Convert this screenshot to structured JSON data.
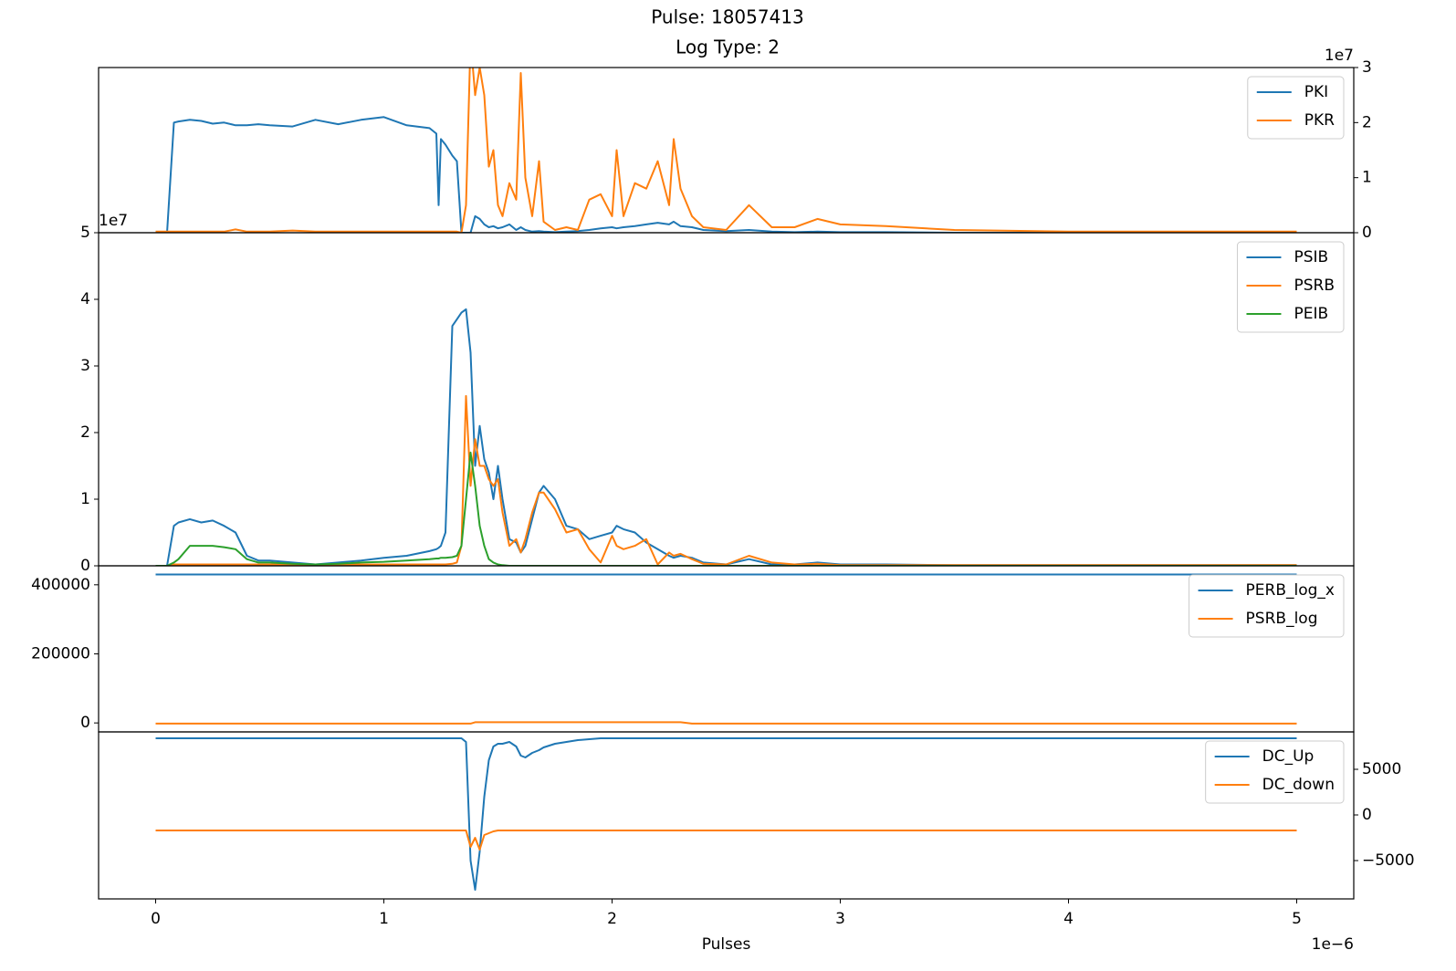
{
  "title": [
    "Pulse: 18057413",
    "Log Type: 2"
  ],
  "chart_data": [
    {
      "type": "line",
      "yaxis": "right",
      "legend": "upper right",
      "offset_label": "1e7",
      "x": [
        0,
        0.05,
        0.08,
        0.1,
        0.15,
        0.2,
        0.25,
        0.3,
        0.35,
        0.4,
        0.45,
        0.5,
        0.6,
        0.7,
        0.8,
        0.9,
        1.0,
        1.1,
        1.2,
        1.23,
        1.24,
        1.25,
        1.27,
        1.3,
        1.32,
        1.34,
        1.36,
        1.38,
        1.4,
        1.42,
        1.44,
        1.46,
        1.48,
        1.5,
        1.52,
        1.55,
        1.58,
        1.6,
        1.62,
        1.65,
        1.68,
        1.7,
        1.75,
        1.8,
        1.85,
        1.9,
        1.95,
        2.0,
        2.02,
        2.05,
        2.1,
        2.15,
        2.2,
        2.25,
        2.27,
        2.3,
        2.35,
        2.4,
        2.5,
        2.6,
        2.7,
        2.8,
        2.9,
        3.0,
        3.2,
        3.5,
        4.0,
        4.5,
        5.0
      ],
      "xlim": [
        -0.25,
        5.25
      ],
      "ylim": [
        0,
        3
      ],
      "yticks": [
        0,
        1,
        2,
        3
      ],
      "series": [
        {
          "name": "PKI",
          "color": "#1f77b4",
          "values": [
            0,
            0,
            2.0,
            2.02,
            2.05,
            2.03,
            1.98,
            2.0,
            1.95,
            1.95,
            1.97,
            1.95,
            1.93,
            2.05,
            1.97,
            2.05,
            2.1,
            1.95,
            1.9,
            1.8,
            0.5,
            1.7,
            1.6,
            1.4,
            1.3,
            0,
            0,
            0,
            0.3,
            0.25,
            0.15,
            0.1,
            0.12,
            0.08,
            0.1,
            0.15,
            0.05,
            0.1,
            0.05,
            0.02,
            0.03,
            0.02,
            0.01,
            0.02,
            0.03,
            0.05,
            0.08,
            0.1,
            0.08,
            0.1,
            0.12,
            0.15,
            0.18,
            0.15,
            0.2,
            0.12,
            0.1,
            0.05,
            0.03,
            0.05,
            0.02,
            0.01,
            0.02,
            0.01,
            0.01,
            0,
            0,
            0,
            0
          ]
        },
        {
          "name": "PKR",
          "color": "#ff7f0e",
          "values": [
            0.02,
            0.02,
            0.02,
            0.02,
            0.02,
            0.02,
            0.02,
            0.02,
            0.06,
            0.02,
            0.02,
            0.02,
            0.04,
            0.02,
            0.02,
            0.02,
            0.02,
            0.02,
            0.02,
            0.02,
            0.02,
            0.02,
            0.02,
            0.02,
            0.02,
            0,
            0.5,
            3.5,
            2.5,
            3.0,
            2.5,
            1.2,
            1.5,
            0.5,
            0.3,
            0.9,
            0.6,
            2.9,
            1.0,
            0.3,
            1.3,
            0.2,
            0.05,
            0.1,
            0.05,
            0.6,
            0.7,
            0.3,
            1.5,
            0.3,
            0.9,
            0.8,
            1.3,
            0.5,
            1.7,
            0.8,
            0.3,
            0.1,
            0.05,
            0.5,
            0.1,
            0.1,
            0.25,
            0.15,
            0.12,
            0.05,
            0.02,
            0.02,
            0.02
          ]
        }
      ]
    },
    {
      "type": "line",
      "yaxis": "left",
      "legend": "upper right",
      "offset_label": "1e7",
      "x": [
        0,
        0.05,
        0.08,
        0.1,
        0.15,
        0.2,
        0.25,
        0.3,
        0.35,
        0.4,
        0.45,
        0.5,
        0.6,
        0.7,
        0.8,
        0.9,
        1.0,
        1.1,
        1.2,
        1.23,
        1.24,
        1.25,
        1.27,
        1.3,
        1.32,
        1.34,
        1.36,
        1.38,
        1.4,
        1.42,
        1.44,
        1.46,
        1.48,
        1.5,
        1.52,
        1.55,
        1.58,
        1.6,
        1.62,
        1.65,
        1.68,
        1.7,
        1.75,
        1.8,
        1.85,
        1.9,
        1.95,
        2.0,
        2.02,
        2.05,
        2.1,
        2.15,
        2.2,
        2.25,
        2.27,
        2.3,
        2.35,
        2.4,
        2.5,
        2.6,
        2.7,
        2.8,
        2.9,
        3.0,
        3.2,
        3.5,
        4.0,
        4.5,
        5.0
      ],
      "xlim": [
        -0.25,
        5.25
      ],
      "ylim": [
        0,
        5
      ],
      "yticks": [
        0,
        1,
        2,
        3,
        4,
        5
      ],
      "series": [
        {
          "name": "PSIB",
          "color": "#1f77b4",
          "values": [
            0,
            0,
            0.6,
            0.65,
            0.7,
            0.65,
            0.68,
            0.6,
            0.5,
            0.15,
            0.08,
            0.08,
            0.05,
            0.02,
            0.05,
            0.08,
            0.12,
            0.15,
            0.22,
            0.25,
            0.27,
            0.3,
            0.5,
            3.6,
            3.7,
            3.8,
            3.85,
            3.2,
            1.5,
            2.1,
            1.6,
            1.4,
            1.0,
            1.5,
            1.0,
            0.4,
            0.35,
            0.2,
            0.3,
            0.7,
            1.1,
            1.2,
            1.0,
            0.6,
            0.55,
            0.4,
            0.45,
            0.5,
            0.6,
            0.55,
            0.5,
            0.35,
            0.25,
            0.15,
            0.12,
            0.15,
            0.12,
            0.05,
            0.02,
            0.1,
            0.02,
            0.02,
            0.05,
            0.02,
            0.02,
            0.01,
            0.01,
            0.01,
            0.01
          ]
        },
        {
          "name": "PSRB",
          "color": "#ff7f0e",
          "values": [
            0,
            0,
            0.02,
            0.02,
            0.02,
            0.02,
            0.02,
            0.02,
            0.02,
            0.02,
            0.02,
            0.02,
            0.02,
            0.02,
            0.02,
            0.02,
            0.02,
            0.02,
            0.02,
            0.02,
            0.02,
            0.02,
            0.02,
            0.03,
            0.05,
            0.3,
            2.55,
            1.2,
            1.9,
            1.5,
            1.5,
            1.3,
            1.2,
            1.3,
            0.8,
            0.3,
            0.4,
            0.2,
            0.4,
            0.8,
            1.1,
            1.1,
            0.85,
            0.5,
            0.55,
            0.25,
            0.05,
            0.45,
            0.3,
            0.25,
            0.3,
            0.4,
            0.02,
            0.2,
            0.15,
            0.18,
            0.1,
            0.03,
            0.02,
            0.15,
            0.05,
            0.02,
            0.03,
            0.01,
            0.01,
            0.01,
            0.01,
            0.01,
            0.01
          ]
        },
        {
          "name": "PEIB",
          "color": "#2ca02c",
          "values": [
            0,
            0,
            0.05,
            0.1,
            0.3,
            0.3,
            0.3,
            0.28,
            0.25,
            0.1,
            0.05,
            0.05,
            0.03,
            0.02,
            0.03,
            0.05,
            0.06,
            0.08,
            0.1,
            0.11,
            0.11,
            0.12,
            0.12,
            0.13,
            0.15,
            0.3,
            1.0,
            1.7,
            1.2,
            0.6,
            0.3,
            0.1,
            0.05,
            0.02,
            0.01,
            0,
            0,
            0,
            0,
            0,
            0,
            0,
            0,
            0,
            0,
            0,
            0,
            0,
            0,
            0,
            0,
            0,
            0,
            0,
            0,
            0,
            0,
            0,
            0,
            0,
            0,
            0,
            0,
            0,
            0,
            0,
            0,
            0,
            0
          ]
        }
      ]
    },
    {
      "type": "line",
      "yaxis": "left",
      "legend": "upper right",
      "x": [
        0,
        0.05,
        0.08,
        0.1,
        0.15,
        0.2,
        0.25,
        0.3,
        0.35,
        0.4,
        0.45,
        0.5,
        0.6,
        0.7,
        0.8,
        0.9,
        1.0,
        1.1,
        1.2,
        1.23,
        1.24,
        1.25,
        1.27,
        1.3,
        1.32,
        1.34,
        1.36,
        1.38,
        1.4,
        1.42,
        1.44,
        1.46,
        1.48,
        1.5,
        1.52,
        1.55,
        1.58,
        1.6,
        1.62,
        1.65,
        1.68,
        1.7,
        1.75,
        1.8,
        1.85,
        1.9,
        1.95,
        2.0,
        2.02,
        2.05,
        2.1,
        2.15,
        2.2,
        2.25,
        2.27,
        2.3,
        2.35,
        2.4,
        2.5,
        2.6,
        2.7,
        2.8,
        2.9,
        3.0,
        3.2,
        3.5,
        4.0,
        4.5,
        5.0
      ],
      "xlim": [
        -0.25,
        5.25
      ],
      "ylim": [
        -26000,
        455000
      ],
      "yticks": [
        0,
        200000,
        400000
      ],
      "series": [
        {
          "name": "PERB_log_x",
          "color": "#1f77b4",
          "values": [
            430000,
            430000,
            430000,
            430000,
            430000,
            430000,
            430000,
            430000,
            430000,
            430000,
            430000,
            430000,
            430000,
            430000,
            430000,
            430000,
            430000,
            430000,
            430000,
            430000,
            430000,
            430000,
            430000,
            430000,
            430000,
            430000,
            430000,
            430000,
            430000,
            430000,
            430000,
            430000,
            430000,
            430000,
            430000,
            430000,
            430000,
            430000,
            430000,
            430000,
            430000,
            430000,
            430000,
            430000,
            430000,
            430000,
            430000,
            430000,
            430000,
            430000,
            430000,
            430000,
            430000,
            430000,
            430000,
            430000,
            430000,
            430000,
            430000,
            430000,
            430000,
            430000,
            430000,
            430000,
            430000,
            430000,
            430000,
            430000,
            430000
          ]
        },
        {
          "name": "PSRB_log",
          "color": "#ff7f0e",
          "values": [
            -2000,
            -2000,
            -2000,
            -2000,
            -2000,
            -2000,
            -2000,
            -2000,
            -2000,
            -2000,
            -2000,
            -2000,
            -2000,
            -2000,
            -2000,
            -2000,
            -2000,
            -2000,
            -2000,
            -2000,
            -2000,
            -2000,
            -2000,
            -2000,
            -2000,
            -2000,
            -2000,
            -2000,
            2000,
            2000,
            2000,
            2000,
            2000,
            2000,
            2000,
            2000,
            2000,
            2000,
            2000,
            2000,
            2000,
            2000,
            2000,
            2000,
            2000,
            2000,
            2000,
            2000,
            2000,
            2000,
            2000,
            2000,
            2000,
            2000,
            2000,
            2000,
            -2000,
            -2000,
            -2000,
            -2000,
            -2000,
            -2000,
            -2000,
            -2000,
            -2000,
            -2000,
            -2000,
            -2000,
            -2000
          ]
        }
      ]
    },
    {
      "type": "line",
      "yaxis": "right",
      "legend": "upper right",
      "xlabel": "Pulses",
      "x_offset_label": "1e−6",
      "x": [
        0,
        0.05,
        0.08,
        0.1,
        0.15,
        0.2,
        0.25,
        0.3,
        0.35,
        0.4,
        0.45,
        0.5,
        0.6,
        0.7,
        0.8,
        0.9,
        1.0,
        1.1,
        1.2,
        1.23,
        1.24,
        1.25,
        1.27,
        1.3,
        1.32,
        1.34,
        1.36,
        1.38,
        1.4,
        1.42,
        1.44,
        1.46,
        1.48,
        1.5,
        1.52,
        1.55,
        1.58,
        1.6,
        1.62,
        1.65,
        1.68,
        1.7,
        1.75,
        1.8,
        1.85,
        1.9,
        1.95,
        2.0,
        2.02,
        2.05,
        2.1,
        2.15,
        2.2,
        2.25,
        2.27,
        2.3,
        2.35,
        2.4,
        2.5,
        2.6,
        2.7,
        2.8,
        2.9,
        3.0,
        3.2,
        3.5,
        4.0,
        4.5,
        5.0
      ],
      "xlim": [
        -0.25,
        5.25
      ],
      "xticks": [
        0,
        1,
        2,
        3,
        4,
        5
      ],
      "ylim": [
        -9200,
        9100
      ],
      "yticks": [
        {
          "value": -5000,
          "label": "−5000"
        },
        0,
        5000
      ],
      "series": [
        {
          "name": "DC_Up",
          "color": "#1f77b4",
          "values": [
            8400,
            8400,
            8400,
            8400,
            8400,
            8400,
            8400,
            8400,
            8400,
            8400,
            8400,
            8400,
            8400,
            8400,
            8400,
            8400,
            8400,
            8400,
            8400,
            8400,
            8400,
            8400,
            8400,
            8400,
            8400,
            8400,
            8000,
            -5000,
            -8200,
            -4000,
            2000,
            6000,
            7500,
            7800,
            7800,
            8000,
            7500,
            6500,
            6300,
            6800,
            7100,
            7400,
            7800,
            8000,
            8200,
            8300,
            8400,
            8400,
            8400,
            8400,
            8400,
            8400,
            8400,
            8400,
            8400,
            8400,
            8400,
            8400,
            8400,
            8400,
            8400,
            8400,
            8400,
            8400,
            8400,
            8400,
            8400,
            8400,
            8400
          ]
        },
        {
          "name": "DC_down",
          "color": "#ff7f0e",
          "values": [
            -1700,
            -1700,
            -1700,
            -1700,
            -1700,
            -1700,
            -1700,
            -1700,
            -1700,
            -1700,
            -1700,
            -1700,
            -1700,
            -1700,
            -1700,
            -1700,
            -1700,
            -1700,
            -1700,
            -1700,
            -1700,
            -1700,
            -1700,
            -1700,
            -1700,
            -1700,
            -1700,
            -3500,
            -2500,
            -3800,
            -2200,
            -2000,
            -1800,
            -1700,
            -1700,
            -1700,
            -1700,
            -1700,
            -1700,
            -1700,
            -1700,
            -1700,
            -1700,
            -1700,
            -1700,
            -1700,
            -1700,
            -1700,
            -1700,
            -1700,
            -1700,
            -1700,
            -1700,
            -1700,
            -1700,
            -1700,
            -1700,
            -1700,
            -1700,
            -1700,
            -1700,
            -1700,
            -1700,
            -1700,
            -1700,
            -1700,
            -1700,
            -1700,
            -1700
          ]
        }
      ]
    }
  ]
}
